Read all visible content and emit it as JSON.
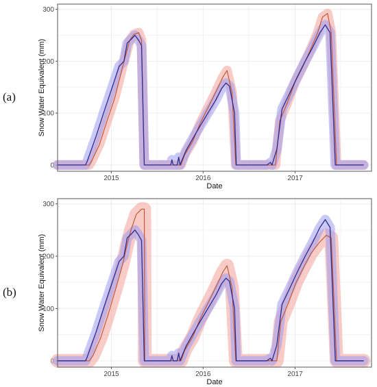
{
  "panels": [
    {
      "label": "(a)"
    },
    {
      "label": "(b)"
    }
  ],
  "colors": {
    "observed": "#2b2b8c",
    "observed_band": "#9c9cf2",
    "modeled": "#c0522e",
    "modeled_band": "#f4a8a0",
    "panel_border": "#555555",
    "grid": "#ececec"
  },
  "chart_data": [
    {
      "type": "line",
      "panel": "(a)",
      "xlabel": "Date",
      "ylabel": "Snow Water Equivalent (mm)",
      "xlim": [
        "2014-06-01",
        "2017-11-01"
      ],
      "ylim": [
        -12,
        310
      ],
      "x_ticks": [
        {
          "date": "2015-01-01",
          "label": "2015"
        },
        {
          "date": "2016-01-01",
          "label": "2016"
        },
        {
          "date": "2017-01-01",
          "label": "2017"
        }
      ],
      "y_ticks": [
        0,
        100,
        200,
        300
      ],
      "grid": true,
      "series": [
        {
          "role": "observed",
          "band_width": 14,
          "points": [
            [
              "2014-06-01",
              0
            ],
            [
              "2014-09-20",
              0
            ],
            [
              "2014-09-26",
              6
            ],
            [
              "2014-10-10",
              25
            ],
            [
              "2014-11-01",
              55
            ],
            [
              "2014-12-01",
              100
            ],
            [
              "2015-01-01",
              145
            ],
            [
              "2015-02-01",
              190
            ],
            [
              "2015-02-20",
              200
            ],
            [
              "2015-03-05",
              235
            ],
            [
              "2015-03-20",
              242
            ],
            [
              "2015-04-05",
              250
            ],
            [
              "2015-04-20",
              240
            ],
            [
              "2015-05-01",
              230
            ],
            [
              "2015-05-12",
              0
            ],
            [
              "2015-08-25",
              0
            ],
            [
              "2015-08-30",
              10
            ],
            [
              "2015-09-04",
              0
            ],
            [
              "2015-09-20",
              0
            ],
            [
              "2015-09-26",
              15
            ],
            [
              "2015-10-01",
              0
            ],
            [
              "2015-10-08",
              8
            ],
            [
              "2015-10-25",
              28
            ],
            [
              "2015-11-20",
              50
            ],
            [
              "2015-12-20",
              75
            ],
            [
              "2016-01-20",
              100
            ],
            [
              "2016-02-20",
              125
            ],
            [
              "2016-03-15",
              148
            ],
            [
              "2016-04-01",
              158
            ],
            [
              "2016-04-15",
              152
            ],
            [
              "2016-05-05",
              100
            ],
            [
              "2016-05-12",
              0
            ],
            [
              "2016-09-10",
              0
            ],
            [
              "2016-09-25",
              5
            ],
            [
              "2016-10-01",
              0
            ],
            [
              "2016-10-20",
              30
            ],
            [
              "2016-11-10",
              108
            ],
            [
              "2016-12-10",
              138
            ],
            [
              "2017-01-10",
              170
            ],
            [
              "2017-02-10",
              200
            ],
            [
              "2017-03-10",
              225
            ],
            [
              "2017-04-10",
              255
            ],
            [
              "2017-05-01",
              270
            ],
            [
              "2017-05-20",
              255
            ],
            [
              "2017-06-10",
              0
            ],
            [
              "2017-10-01",
              0
            ]
          ]
        },
        {
          "role": "modeled",
          "band_width": 14,
          "points": [
            [
              "2014-06-01",
              0
            ],
            [
              "2014-10-05",
              0
            ],
            [
              "2014-10-15",
              8
            ],
            [
              "2014-11-15",
              40
            ],
            [
              "2014-12-15",
              85
            ],
            [
              "2015-01-15",
              130
            ],
            [
              "2015-02-15",
              190
            ],
            [
              "2015-03-01",
              215
            ],
            [
              "2015-03-15",
              240
            ],
            [
              "2015-04-01",
              252
            ],
            [
              "2015-04-20",
              255
            ],
            [
              "2015-05-01",
              240
            ],
            [
              "2015-05-12",
              0
            ],
            [
              "2015-10-05",
              0
            ],
            [
              "2015-10-20",
              20
            ],
            [
              "2015-11-20",
              45
            ],
            [
              "2015-12-20",
              80
            ],
            [
              "2016-01-20",
              110
            ],
            [
              "2016-02-20",
              140
            ],
            [
              "2016-03-20",
              170
            ],
            [
              "2016-04-05",
              182
            ],
            [
              "2016-04-25",
              140
            ],
            [
              "2016-05-10",
              0
            ],
            [
              "2016-10-15",
              0
            ],
            [
              "2016-11-01",
              85
            ],
            [
              "2016-12-01",
              120
            ],
            [
              "2017-01-01",
              160
            ],
            [
              "2017-02-01",
              190
            ],
            [
              "2017-03-01",
              220
            ],
            [
              "2017-04-01",
              255
            ],
            [
              "2017-04-20",
              285
            ],
            [
              "2017-05-10",
              292
            ],
            [
              "2017-05-25",
              255
            ],
            [
              "2017-06-15",
              0
            ],
            [
              "2017-10-01",
              0
            ]
          ]
        }
      ]
    },
    {
      "type": "line",
      "panel": "(b)",
      "xlabel": "Date",
      "ylabel": "Snow Water Equivalent (mm)",
      "xlim": [
        "2014-06-01",
        "2017-11-01"
      ],
      "ylim": [
        -12,
        310
      ],
      "x_ticks": [
        {
          "date": "2015-01-01",
          "label": "2015"
        },
        {
          "date": "2016-01-01",
          "label": "2016"
        },
        {
          "date": "2017-01-01",
          "label": "2017"
        }
      ],
      "y_ticks": [
        0,
        100,
        200,
        300
      ],
      "grid": true,
      "series": [
        {
          "role": "observed",
          "band_width": 14,
          "points": [
            [
              "2014-06-01",
              0
            ],
            [
              "2014-09-20",
              0
            ],
            [
              "2014-09-26",
              6
            ],
            [
              "2014-10-10",
              25
            ],
            [
              "2014-11-01",
              55
            ],
            [
              "2014-12-01",
              100
            ],
            [
              "2015-01-01",
              145
            ],
            [
              "2015-02-01",
              190
            ],
            [
              "2015-02-20",
              200
            ],
            [
              "2015-03-05",
              235
            ],
            [
              "2015-03-20",
              242
            ],
            [
              "2015-04-05",
              250
            ],
            [
              "2015-04-20",
              240
            ],
            [
              "2015-05-01",
              230
            ],
            [
              "2015-05-12",
              0
            ],
            [
              "2015-08-25",
              0
            ],
            [
              "2015-08-30",
              10
            ],
            [
              "2015-09-04",
              0
            ],
            [
              "2015-09-20",
              0
            ],
            [
              "2015-09-26",
              15
            ],
            [
              "2015-10-01",
              0
            ],
            [
              "2015-10-08",
              8
            ],
            [
              "2015-10-25",
              28
            ],
            [
              "2015-11-20",
              50
            ],
            [
              "2015-12-20",
              75
            ],
            [
              "2016-01-20",
              100
            ],
            [
              "2016-02-20",
              125
            ],
            [
              "2016-03-15",
              148
            ],
            [
              "2016-04-01",
              158
            ],
            [
              "2016-04-15",
              152
            ],
            [
              "2016-05-05",
              100
            ],
            [
              "2016-05-12",
              0
            ],
            [
              "2016-09-10",
              0
            ],
            [
              "2016-09-25",
              5
            ],
            [
              "2016-10-01",
              0
            ],
            [
              "2016-10-20",
              30
            ],
            [
              "2016-11-10",
              108
            ],
            [
              "2016-12-10",
              138
            ],
            [
              "2017-01-10",
              170
            ],
            [
              "2017-02-10",
              200
            ],
            [
              "2017-03-10",
              225
            ],
            [
              "2017-04-10",
              255
            ],
            [
              "2017-05-01",
              270
            ],
            [
              "2017-05-20",
              255
            ],
            [
              "2017-06-10",
              0
            ],
            [
              "2017-10-01",
              0
            ]
          ]
        },
        {
          "role": "modeled",
          "band_width": 20,
          "points": [
            [
              "2014-06-01",
              0
            ],
            [
              "2014-10-05",
              0
            ],
            [
              "2014-10-20",
              10
            ],
            [
              "2014-11-20",
              45
            ],
            [
              "2014-12-20",
              90
            ],
            [
              "2015-01-20",
              140
            ],
            [
              "2015-02-15",
              185
            ],
            [
              "2015-03-01",
              215
            ],
            [
              "2015-03-20",
              250
            ],
            [
              "2015-04-10",
              280
            ],
            [
              "2015-05-01",
              290
            ],
            [
              "2015-05-12",
              290
            ],
            [
              "2015-05-14",
              0
            ],
            [
              "2015-10-05",
              0
            ],
            [
              "2015-10-20",
              20
            ],
            [
              "2015-11-20",
              45
            ],
            [
              "2015-12-20",
              80
            ],
            [
              "2016-01-20",
              110
            ],
            [
              "2016-02-20",
              140
            ],
            [
              "2016-03-20",
              170
            ],
            [
              "2016-04-05",
              182
            ],
            [
              "2016-04-25",
              140
            ],
            [
              "2016-05-10",
              0
            ],
            [
              "2016-10-20",
              0
            ],
            [
              "2016-11-05",
              75
            ],
            [
              "2016-12-05",
              110
            ],
            [
              "2017-01-05",
              150
            ],
            [
              "2017-02-05",
              180
            ],
            [
              "2017-03-05",
              205
            ],
            [
              "2017-04-05",
              225
            ],
            [
              "2017-05-05",
              240
            ],
            [
              "2017-05-25",
              235
            ],
            [
              "2017-06-15",
              0
            ],
            [
              "2017-10-01",
              0
            ]
          ]
        }
      ]
    }
  ]
}
